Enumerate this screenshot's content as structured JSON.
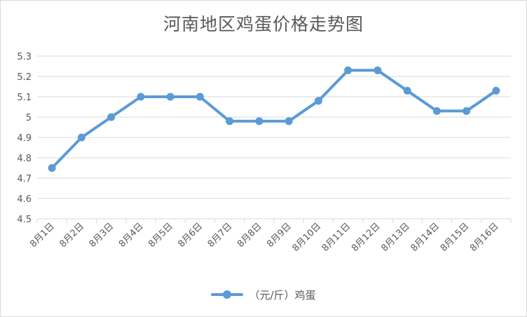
{
  "chart_data": {
    "type": "line",
    "title": "河南地区鸡蛋价格走势图",
    "categories": [
      "8月1日",
      "8月2日",
      "8月3日",
      "8月4日",
      "8月5日",
      "8月6日",
      "8月7日",
      "8月8日",
      "8月9日",
      "8月10日",
      "8月11日",
      "8月12日",
      "8月13日",
      "8月14日",
      "8月15日",
      "8月16日"
    ],
    "series": [
      {
        "name": "（元/斤）鸡蛋",
        "values": [
          4.75,
          4.9,
          5.0,
          5.1,
          5.1,
          5.1,
          4.98,
          4.98,
          4.98,
          5.08,
          5.23,
          5.23,
          5.13,
          5.03,
          5.03,
          5.13
        ],
        "color": "#5b9bd5"
      }
    ],
    "y_ticks": [
      "4.5",
      "4.6",
      "4.7",
      "4.8",
      "4.9",
      "5",
      "5.1",
      "5.2",
      "5.3"
    ],
    "ylim": [
      4.5,
      5.3
    ],
    "xlabel": "",
    "ylabel": "",
    "grid": true,
    "legend_position": "bottom"
  },
  "colors": {
    "line": "#5b9bd5",
    "grid": "#d9d9d9",
    "text": "#595959"
  }
}
